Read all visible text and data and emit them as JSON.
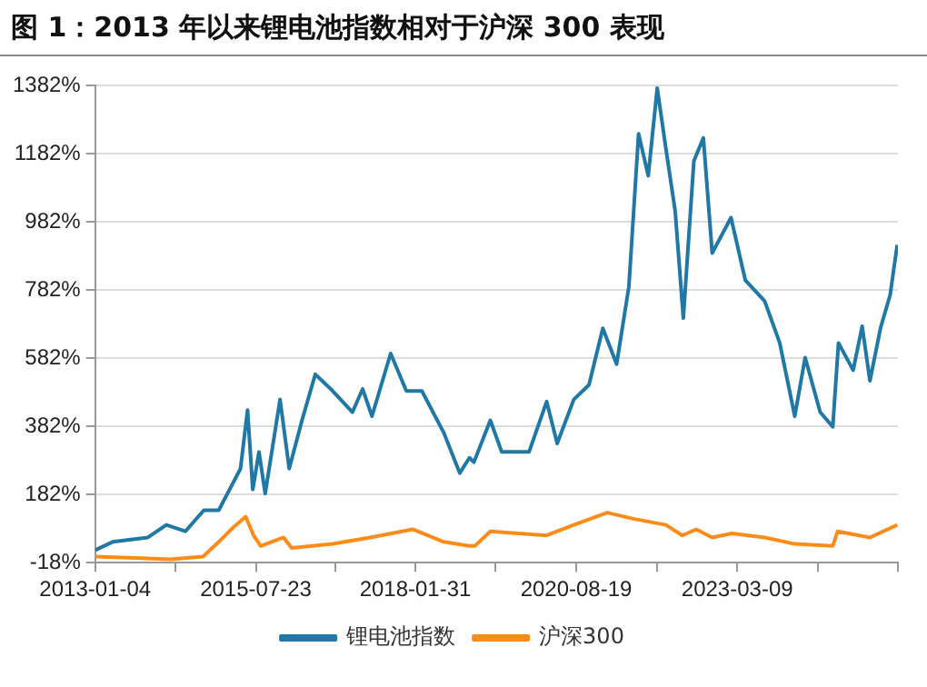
{
  "chart_data": {
    "type": "line",
    "title": "图 1：2013 年以来锂电池指数相对于沪深 300 表现",
    "xlim": [
      "2013-01-04",
      "2025-09-24"
    ],
    "xticks": [
      "2013-01-04",
      {
        "value": "2014-04-14",
        "label": null
      },
      "2015-07-23",
      {
        "value": "2016-10-27",
        "label": null
      },
      "2018-01-31",
      {
        "value": "2019-05-11",
        "label": null
      },
      "2020-08-19",
      {
        "value": "2021-11-28",
        "label": null
      },
      "2023-03-09",
      {
        "value": "2024-06-16",
        "label": null
      },
      {
        "value": "2025-09-24",
        "label": null
      }
    ],
    "ylim": [
      -18,
      1382
    ],
    "yticks": [
      {
        "value": -18,
        "label": "-18%"
      },
      {
        "value": 182,
        "label": "182%"
      },
      {
        "value": 382,
        "label": "382%"
      },
      {
        "value": 582,
        "label": "582%"
      },
      {
        "value": 782,
        "label": "782%"
      },
      {
        "value": 982,
        "label": "982%"
      },
      {
        "value": 1182,
        "label": "1182%"
      },
      {
        "value": 1382,
        "label": "1382%"
      }
    ],
    "grid": "y",
    "legend": "bottom",
    "marker": "none",
    "line_style": "solid",
    "series": [
      {
        "name": "锂电池指数",
        "color": "#1f78a6",
        "x": [
          "2013-01-04",
          "2013-04-15",
          "2013-11-05",
          "2014-02-20",
          "2014-06-10",
          "2014-09-25",
          "2014-12-20",
          "2015-04-25",
          "2015-06-05",
          "2015-07-05",
          "2015-08-10",
          "2015-09-15",
          "2015-12-10",
          "2016-02-01",
          "2016-04-15",
          "2016-07-01",
          "2016-10-10",
          "2017-02-01",
          "2017-04-01",
          "2017-05-25",
          "2017-09-10",
          "2017-12-10",
          "2018-03-10",
          "2018-07-15",
          "2018-10-15",
          "2018-12-10",
          "2019-01-05",
          "2019-04-10",
          "2019-06-15",
          "2019-11-20",
          "2020-03-01",
          "2020-05-01",
          "2020-08-05",
          "2020-11-01",
          "2021-01-20",
          "2021-04-10",
          "2021-06-20",
          "2021-08-15",
          "2021-10-10",
          "2021-12-01",
          "2022-01-20",
          "2022-03-15",
          "2022-05-01",
          "2022-07-01",
          "2022-08-25",
          "2022-10-15",
          "2023-02-01",
          "2023-04-25",
          "2023-08-15",
          "2023-11-10",
          "2024-02-05",
          "2024-04-05",
          "2024-07-01",
          "2024-09-12",
          "2024-10-15",
          "2025-01-08",
          "2025-03-01",
          "2025-04-15",
          "2025-06-15",
          "2025-08-10",
          "2025-09-20"
        ],
        "values": [
          19,
          43,
          56,
          93,
          74,
          136,
          136,
          258,
          430,
          197,
          307,
          185,
          461,
          258,
          400,
          535,
          486,
          424,
          492,
          412,
          596,
          486,
          486,
          363,
          245,
          290,
          277,
          400,
          307,
          307,
          455,
          332,
          461,
          504,
          670,
          565,
          793,
          1241,
          1118,
          1375,
          1198,
          1014,
          700,
          1161,
          1229,
          891,
          995,
          811,
          750,
          627,
          412,
          584,
          424,
          381,
          627,
          547,
          676,
          516,
          670,
          768,
          915
        ]
      },
      {
        "name": "沪深300",
        "color": "#ff8c1a",
        "x": [
          "2013-01-04",
          "2013-10-01",
          "2014-03-15",
          "2014-09-20",
          "2014-12-20",
          "2015-03-15",
          "2015-05-25",
          "2015-07-10",
          "2015-08-20",
          "2015-12-30",
          "2016-02-15",
          "2016-10-10",
          "2017-05-15",
          "2018-01-15",
          "2018-07-15",
          "2018-12-10",
          "2019-01-10",
          "2019-04-10",
          "2020-03-01",
          "2020-08-05",
          "2021-02-15",
          "2021-07-15",
          "2022-01-20",
          "2022-04-25",
          "2022-07-15",
          "2022-10-15",
          "2023-02-05",
          "2023-08-15",
          "2024-02-05",
          "2024-09-12",
          "2024-10-10",
          "2025-04-15",
          "2025-09-20"
        ],
        "values": [
          0,
          -5,
          -8,
          0,
          43,
          86,
          117,
          62,
          31,
          56,
          25,
          37,
          56,
          80,
          43,
          31,
          31,
          74,
          62,
          93,
          129,
          111,
          93,
          62,
          80,
          56,
          68,
          56,
          37,
          31,
          74,
          56,
          93
        ]
      }
    ]
  }
}
